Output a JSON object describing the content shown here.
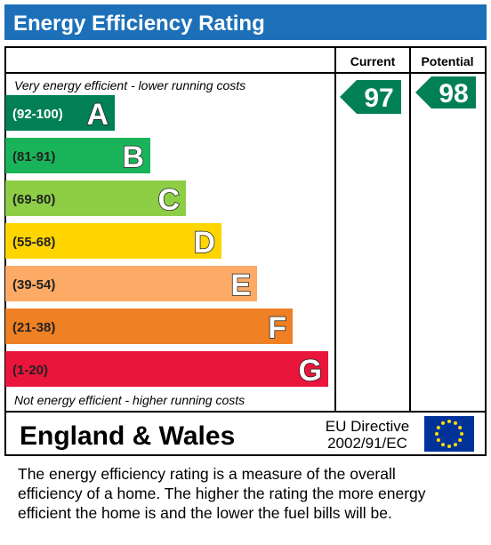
{
  "header": {
    "title": "Energy Efficiency Rating"
  },
  "columns": {
    "current": "Current",
    "potential": "Potential"
  },
  "top_note": "Very energy efficient - lower running costs",
  "bottom_note": "Not energy efficient - higher running costs",
  "bands": [
    {
      "range": "(92-100)",
      "letter": "A",
      "color": "#008054"
    },
    {
      "range": "(81-91)",
      "letter": "B",
      "color": "#19b459"
    },
    {
      "range": "(69-80)",
      "letter": "C",
      "color": "#8dce46"
    },
    {
      "range": "(55-68)",
      "letter": "D",
      "color": "#ffd500"
    },
    {
      "range": "(39-54)",
      "letter": "E",
      "color": "#fcaa65"
    },
    {
      "range": "(21-38)",
      "letter": "F",
      "color": "#ef8023"
    },
    {
      "range": "(1-20)",
      "letter": "G",
      "color": "#e9153b"
    }
  ],
  "current": {
    "value": 97,
    "color": "#008054"
  },
  "potential": {
    "value": 98,
    "color": "#008054"
  },
  "footer": {
    "region": "England & Wales",
    "directive": [
      "EU Directive",
      "2002/91/EC"
    ]
  },
  "caption": [
    "The energy efficiency rating is a measure of the overall",
    "efficiency of a home.  The higher the rating the more energy",
    "efficient the home is and the lower the fuel bills will be."
  ]
}
